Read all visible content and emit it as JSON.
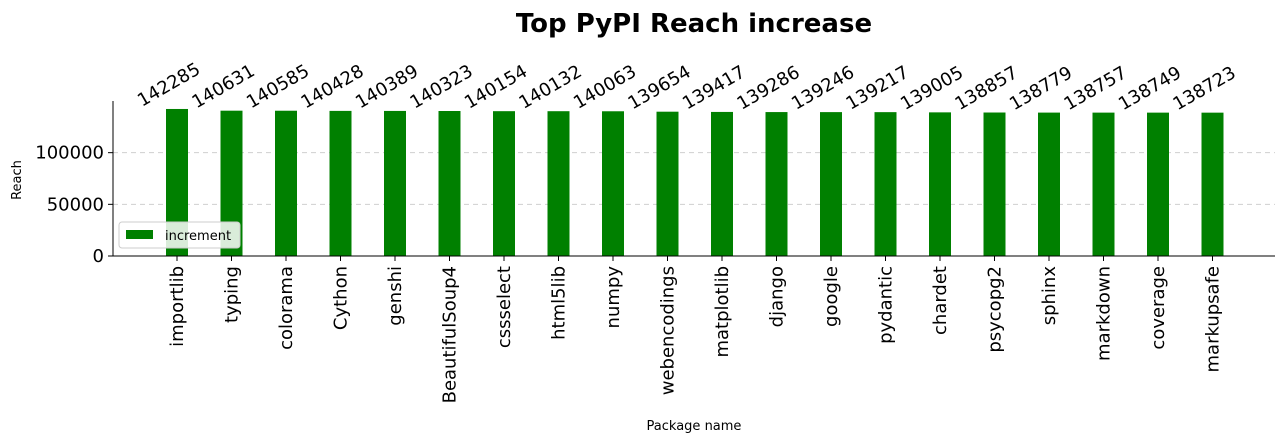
{
  "chart_data": {
    "type": "bar",
    "title": "Top PyPI Reach increase",
    "xlabel": "Package name",
    "ylabel": "Reach",
    "categories": [
      "importlib",
      "typing",
      "colorama",
      "Cython",
      "genshi",
      "BeautifulSoup4",
      "cssselect",
      "html5lib",
      "numpy",
      "webencodings",
      "matplotlib",
      "django",
      "google",
      "pydantic",
      "chardet",
      "psycopg2",
      "sphinx",
      "markdown",
      "coverage",
      "markupsafe"
    ],
    "series": [
      {
        "name": "increment",
        "color": "#008000",
        "values": [
          142285,
          140631,
          140585,
          140428,
          140389,
          140323,
          140154,
          140132,
          140063,
          139654,
          139417,
          139286,
          139246,
          139217,
          139005,
          138857,
          138779,
          138757,
          138749,
          138723
        ]
      }
    ],
    "y_ticks": [
      0,
      50000,
      100000
    ],
    "y_tick_labels": [
      "0",
      "50000",
      "100000"
    ],
    "ylim": [
      0,
      150000
    ],
    "grid": "horizontal dashed",
    "legend_position": "lower-left"
  }
}
